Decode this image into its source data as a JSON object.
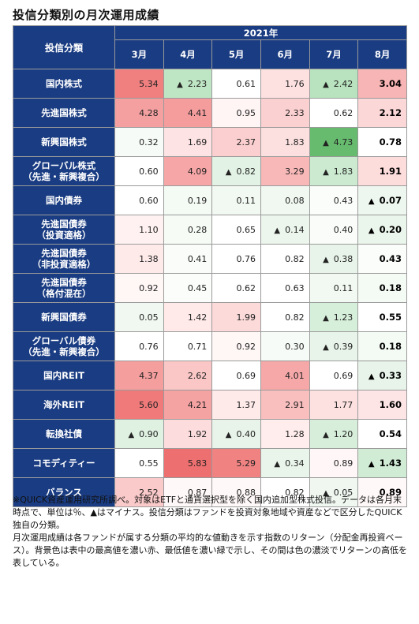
{
  "title": "投信分類別の月次運用成績",
  "header": {
    "category_label": "投信分類",
    "year": "2021年",
    "months": [
      "3月",
      "4月",
      "5月",
      "6月",
      "7月",
      "8月"
    ]
  },
  "rows": [
    {
      "name": "国内株式",
      "values": [
        {
          "text": "5.34",
          "neg": false,
          "bg": "#f08080"
        },
        {
          "text": "2.23",
          "neg": true,
          "bg": "#bfe6c4"
        },
        {
          "text": "0.61",
          "neg": false,
          "bg": "#ffffff"
        },
        {
          "text": "1.76",
          "neg": false,
          "bg": "#fde1e1"
        },
        {
          "text": "2.42",
          "neg": true,
          "bg": "#b8e3be"
        },
        {
          "text": "3.04",
          "neg": false,
          "bg": "#f8b5b5"
        }
      ]
    },
    {
      "name": "先進国株式",
      "values": [
        {
          "text": "4.28",
          "neg": false,
          "bg": "#f5a0a0"
        },
        {
          "text": "4.41",
          "neg": false,
          "bg": "#f59d9d"
        },
        {
          "text": "0.95",
          "neg": false,
          "bg": "#fff5f5"
        },
        {
          "text": "2.33",
          "neg": false,
          "bg": "#fbd0d0"
        },
        {
          "text": "0.62",
          "neg": false,
          "bg": "#ffffff"
        },
        {
          "text": "2.12",
          "neg": false,
          "bg": "#fcd7d7"
        }
      ]
    },
    {
      "name": "新興国株式",
      "values": [
        {
          "text": "0.32",
          "neg": false,
          "bg": "#f7fbf7"
        },
        {
          "text": "1.69",
          "neg": false,
          "bg": "#fde3e3"
        },
        {
          "text": "2.37",
          "neg": false,
          "bg": "#fbcfcf"
        },
        {
          "text": "1.83",
          "neg": false,
          "bg": "#fcdfdf"
        },
        {
          "text": "4.73",
          "neg": true,
          "bg": "#66bb6e"
        },
        {
          "text": "0.78",
          "neg": false,
          "bg": "#ffffff"
        }
      ]
    },
    {
      "name": "グローバル株式\n（先進・新興複合）",
      "values": [
        {
          "text": "0.60",
          "neg": false,
          "bg": "#ffffff"
        },
        {
          "text": "4.09",
          "neg": false,
          "bg": "#f6a6a6"
        },
        {
          "text": "0.82",
          "neg": true,
          "bg": "#e2f2e4"
        },
        {
          "text": "3.29",
          "neg": false,
          "bg": "#f8b8b8"
        },
        {
          "text": "1.83",
          "neg": true,
          "bg": "#cbead0"
        },
        {
          "text": "1.91",
          "neg": false,
          "bg": "#fddcdc"
        }
      ]
    },
    {
      "name": "国内債券",
      "values": [
        {
          "text": "0.60",
          "neg": false,
          "bg": "#ffffff"
        },
        {
          "text": "0.19",
          "neg": false,
          "bg": "#f4faf4"
        },
        {
          "text": "0.11",
          "neg": false,
          "bg": "#f2f9f2"
        },
        {
          "text": "0.08",
          "neg": false,
          "bg": "#f1f8f1"
        },
        {
          "text": "0.43",
          "neg": false,
          "bg": "#fafdfa"
        },
        {
          "text": "0.07",
          "neg": true,
          "bg": "#eef7ef"
        }
      ]
    },
    {
      "name": "先進国債券\n（投資適格）",
      "values": [
        {
          "text": "1.10",
          "neg": false,
          "bg": "#fff1f1"
        },
        {
          "text": "0.28",
          "neg": false,
          "bg": "#f6fbf6"
        },
        {
          "text": "0.65",
          "neg": false,
          "bg": "#ffffff"
        },
        {
          "text": "0.14",
          "neg": true,
          "bg": "#ecf6ed"
        },
        {
          "text": "0.40",
          "neg": false,
          "bg": "#f9fcf9"
        },
        {
          "text": "0.20",
          "neg": true,
          "bg": "#eaf5eb"
        }
      ]
    },
    {
      "name": "先進国債券\n（非投資適格）",
      "values": [
        {
          "text": "1.38",
          "neg": false,
          "bg": "#ffeaea"
        },
        {
          "text": "0.41",
          "neg": false,
          "bg": "#f9fcf9"
        },
        {
          "text": "0.76",
          "neg": false,
          "bg": "#ffffff"
        },
        {
          "text": "0.82",
          "neg": false,
          "bg": "#ffffff"
        },
        {
          "text": "0.38",
          "neg": true,
          "bg": "#e8f4e9"
        },
        {
          "text": "0.43",
          "neg": false,
          "bg": "#fafdfa"
        }
      ]
    },
    {
      "name": "先進国債券\n（格付混在）",
      "values": [
        {
          "text": "0.92",
          "neg": false,
          "bg": "#fff6f6"
        },
        {
          "text": "0.45",
          "neg": false,
          "bg": "#fafdfa"
        },
        {
          "text": "0.62",
          "neg": false,
          "bg": "#ffffff"
        },
        {
          "text": "0.63",
          "neg": false,
          "bg": "#ffffff"
        },
        {
          "text": "0.11",
          "neg": false,
          "bg": "#f2f9f2"
        },
        {
          "text": "0.18",
          "neg": false,
          "bg": "#f4faf4"
        }
      ]
    },
    {
      "name": "新興国債券",
      "values": [
        {
          "text": "0.05",
          "neg": false,
          "bg": "#f1f8f1"
        },
        {
          "text": "1.42",
          "neg": false,
          "bg": "#ffe9e9"
        },
        {
          "text": "1.99",
          "neg": false,
          "bg": "#fcdada"
        },
        {
          "text": "0.82",
          "neg": false,
          "bg": "#ffffff"
        },
        {
          "text": "1.23",
          "neg": true,
          "bg": "#d6efda"
        },
        {
          "text": "0.55",
          "neg": false,
          "bg": "#ffffff"
        }
      ]
    },
    {
      "name": "グローバル債券\n（先進・新興複合）",
      "values": [
        {
          "text": "0.76",
          "neg": false,
          "bg": "#ffffff"
        },
        {
          "text": "0.71",
          "neg": false,
          "bg": "#ffffff"
        },
        {
          "text": "0.92",
          "neg": false,
          "bg": "#fff6f6"
        },
        {
          "text": "0.30",
          "neg": false,
          "bg": "#f7fbf7"
        },
        {
          "text": "0.39",
          "neg": true,
          "bg": "#e8f4e9"
        },
        {
          "text": "0.18",
          "neg": false,
          "bg": "#f4faf4"
        }
      ]
    },
    {
      "name": "国内REIT",
      "values": [
        {
          "text": "4.37",
          "neg": false,
          "bg": "#f59e9e"
        },
        {
          "text": "2.62",
          "neg": false,
          "bg": "#fac6c6"
        },
        {
          "text": "0.69",
          "neg": false,
          "bg": "#ffffff"
        },
        {
          "text": "4.01",
          "neg": false,
          "bg": "#f6a8a8"
        },
        {
          "text": "0.69",
          "neg": false,
          "bg": "#ffffff"
        },
        {
          "text": "0.33",
          "neg": true,
          "bg": "#e8f4e9"
        }
      ]
    },
    {
      "name": "海外REIT",
      "values": [
        {
          "text": "5.60",
          "neg": false,
          "bg": "#f07a7a"
        },
        {
          "text": "4.21",
          "neg": false,
          "bg": "#f5a2a2"
        },
        {
          "text": "1.37",
          "neg": false,
          "bg": "#ffeaea"
        },
        {
          "text": "2.91",
          "neg": false,
          "bg": "#f9bfbf"
        },
        {
          "text": "1.77",
          "neg": false,
          "bg": "#fde1e1"
        },
        {
          "text": "1.60",
          "neg": false,
          "bg": "#fde5e5"
        }
      ]
    },
    {
      "name": "転換社債",
      "values": [
        {
          "text": "0.90",
          "neg": true,
          "bg": "#dff1e1"
        },
        {
          "text": "1.92",
          "neg": false,
          "bg": "#fcdcdc"
        },
        {
          "text": "0.40",
          "neg": true,
          "bg": "#e8f4e9"
        },
        {
          "text": "1.28",
          "neg": false,
          "bg": "#ffecec"
        },
        {
          "text": "1.20",
          "neg": true,
          "bg": "#d7efda"
        },
        {
          "text": "0.54",
          "neg": false,
          "bg": "#ffffff"
        }
      ]
    },
    {
      "name": "コモディティー",
      "values": [
        {
          "text": "0.55",
          "neg": false,
          "bg": "#ffffff"
        },
        {
          "text": "5.83",
          "neg": false,
          "bg": "#ee6f6f"
        },
        {
          "text": "5.29",
          "neg": false,
          "bg": "#f18282"
        },
        {
          "text": "0.34",
          "neg": true,
          "bg": "#e9f5ea"
        },
        {
          "text": "0.89",
          "neg": false,
          "bg": "#fff7f7"
        },
        {
          "text": "1.43",
          "neg": true,
          "bg": "#d1ecd5"
        }
      ]
    },
    {
      "name": "バランス",
      "values": [
        {
          "text": "2.52",
          "neg": false,
          "bg": "#fac9c9"
        },
        {
          "text": "0.87",
          "neg": false,
          "bg": "#fff8f8"
        },
        {
          "text": "0.88",
          "neg": false,
          "bg": "#fff8f8"
        },
        {
          "text": "0.82",
          "neg": false,
          "bg": "#ffffff"
        },
        {
          "text": "0.05",
          "neg": true,
          "bg": "#eff7f0"
        },
        {
          "text": "0.89",
          "neg": false,
          "bg": "#fff8f8"
        }
      ]
    }
  ],
  "triangle_symbol": "▲",
  "notes": [
    "※QUICK資産運用研究所調べ。対象はETFと通貨選択型を除く国内追加型株式投信。データは各月末時点で、単位は％、▲はマイナス。投信分類はファンドを投資対象地域や資産などで区分したQUICK独自の分類。",
    "月次運用成績は各ファンドが属する分類の平均的な値動きを示す指数のリターン（分配金再投資ベース）。背景色は表中の最高値を濃い赤、最低値を濃い緑で示し、その間は色の濃淡でリターンの高低を表している。"
  ]
}
